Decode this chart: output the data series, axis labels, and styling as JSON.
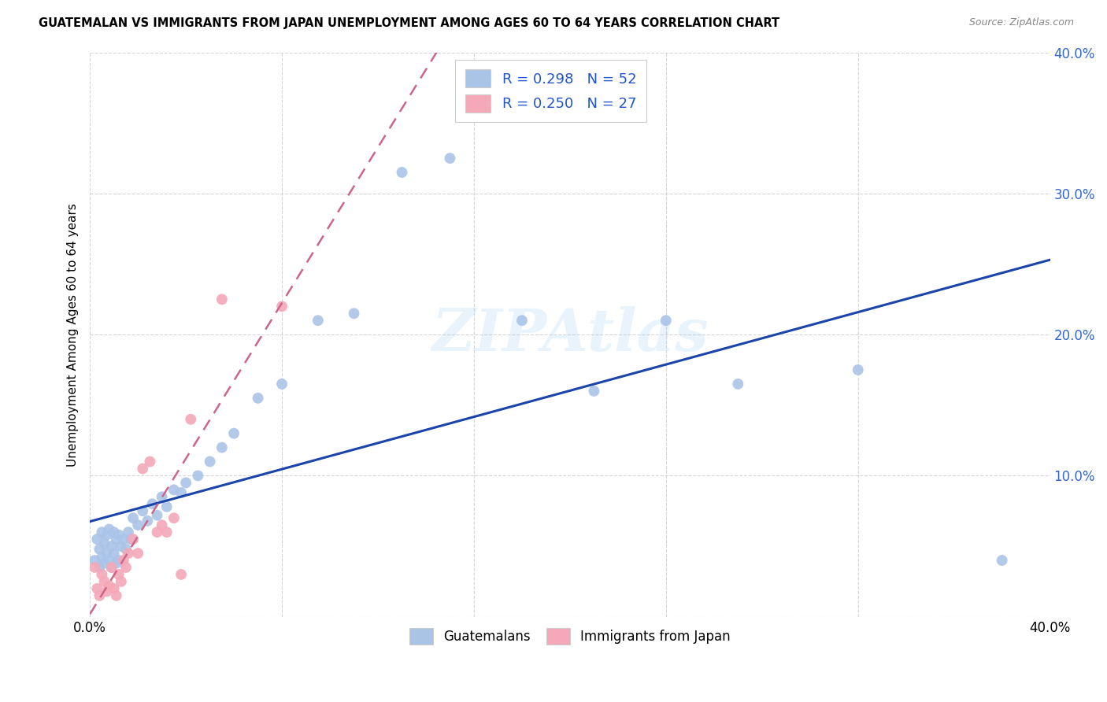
{
  "title": "GUATEMALAN VS IMMIGRANTS FROM JAPAN UNEMPLOYMENT AMONG AGES 60 TO 64 YEARS CORRELATION CHART",
  "source": "Source: ZipAtlas.com",
  "ylabel": "Unemployment Among Ages 60 to 64 years",
  "xlim": [
    0.0,
    0.4
  ],
  "ylim": [
    0.0,
    0.4
  ],
  "guatemalan_color": "#aac4e8",
  "japan_color": "#f4a8b8",
  "trend_guatemalan_color": "#1a44aa",
  "trend_japan_color": "#cc6688",
  "legend_guatemalan_label": "R = 0.298   N = 52",
  "legend_japan_label": "R = 0.250   N = 27",
  "legend_bottom_guatemalan": "Guatemalans",
  "legend_bottom_japan": "Immigrants from Japan",
  "guatemalan_x": [
    0.002,
    0.003,
    0.004,
    0.004,
    0.005,
    0.005,
    0.006,
    0.006,
    0.007,
    0.007,
    0.008,
    0.008,
    0.009,
    0.009,
    0.01,
    0.01,
    0.011,
    0.011,
    0.012,
    0.012,
    0.013,
    0.014,
    0.015,
    0.016,
    0.017,
    0.018,
    0.02,
    0.022,
    0.024,
    0.026,
    0.028,
    0.03,
    0.032,
    0.035,
    0.038,
    0.04,
    0.045,
    0.05,
    0.055,
    0.06,
    0.07,
    0.08,
    0.095,
    0.11,
    0.13,
    0.15,
    0.18,
    0.21,
    0.24,
    0.27,
    0.32,
    0.38
  ],
  "guatemalan_y": [
    0.04,
    0.055,
    0.035,
    0.048,
    0.042,
    0.06,
    0.038,
    0.052,
    0.045,
    0.058,
    0.04,
    0.062,
    0.035,
    0.05,
    0.045,
    0.06,
    0.038,
    0.055,
    0.04,
    0.058,
    0.05,
    0.055,
    0.048,
    0.06,
    0.055,
    0.07,
    0.065,
    0.075,
    0.068,
    0.08,
    0.072,
    0.085,
    0.078,
    0.09,
    0.088,
    0.095,
    0.1,
    0.11,
    0.12,
    0.13,
    0.155,
    0.165,
    0.21,
    0.215,
    0.315,
    0.325,
    0.21,
    0.16,
    0.21,
    0.165,
    0.175,
    0.04
  ],
  "japan_x": [
    0.002,
    0.003,
    0.004,
    0.005,
    0.006,
    0.007,
    0.008,
    0.009,
    0.01,
    0.011,
    0.012,
    0.013,
    0.014,
    0.015,
    0.016,
    0.018,
    0.02,
    0.022,
    0.025,
    0.028,
    0.03,
    0.032,
    0.035,
    0.038,
    0.042,
    0.055,
    0.08
  ],
  "japan_y": [
    0.035,
    0.02,
    0.015,
    0.03,
    0.025,
    0.018,
    0.022,
    0.035,
    0.02,
    0.015,
    0.03,
    0.025,
    0.04,
    0.035,
    0.045,
    0.055,
    0.045,
    0.105,
    0.11,
    0.06,
    0.065,
    0.06,
    0.07,
    0.03,
    0.14,
    0.225,
    0.22
  ],
  "R_guatemalan": 0.298,
  "N_guatemalan": 52,
  "R_japan": 0.25,
  "N_japan": 27
}
